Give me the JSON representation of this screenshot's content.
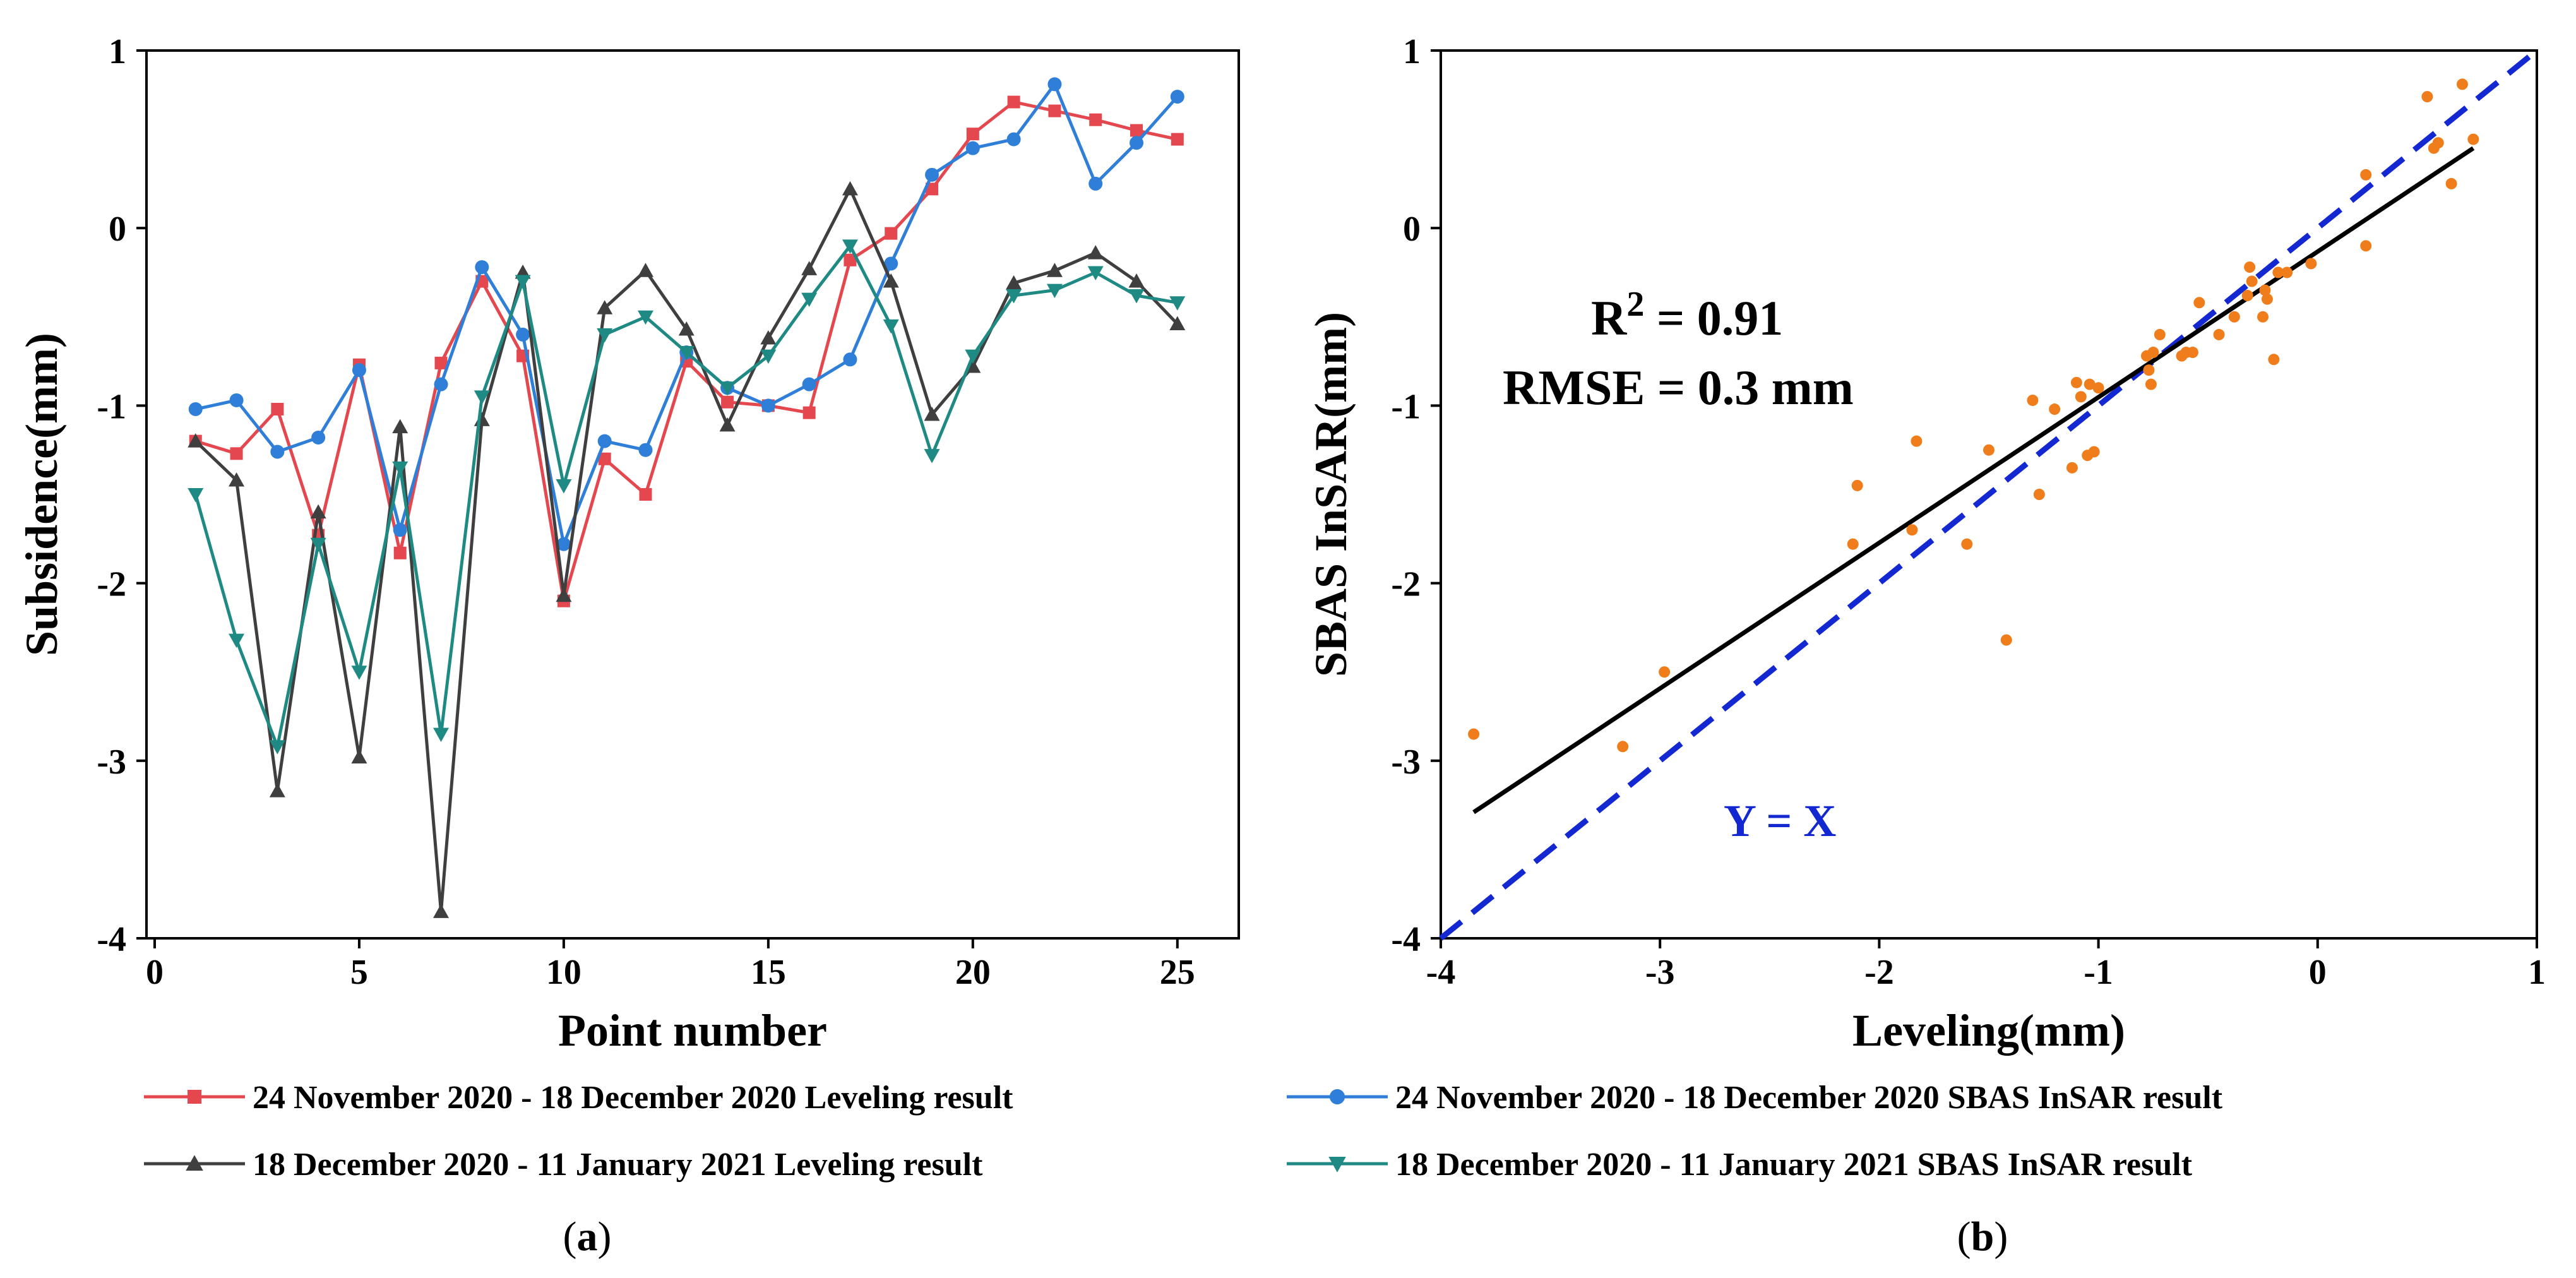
{
  "chart_data": [
    {
      "id": "a",
      "type": "line",
      "panel_label": "(a)",
      "panel_letter": "a",
      "xlabel": "Point number",
      "ylabel": "Subsidence(mm)",
      "xlim": [
        -0.2,
        26.5
      ],
      "ylim": [
        -4,
        1
      ],
      "xticks": [
        0,
        5,
        10,
        15,
        20,
        25
      ],
      "yticks": [
        -4,
        -3,
        -2,
        -1,
        0,
        1
      ],
      "x": [
        1,
        2,
        3,
        4,
        5,
        6,
        7,
        8,
        9,
        10,
        11,
        12,
        13,
        14,
        15,
        16,
        17,
        18,
        19,
        20,
        21,
        22,
        23,
        24,
        25
      ],
      "series": [
        {
          "name": "24 November 2020 - 18 December 2020 Leveling result",
          "color": "#e5474f",
          "marker": "square",
          "values": [
            -1.2,
            -1.27,
            -1.02,
            -1.73,
            -0.77,
            -1.83,
            -0.76,
            -0.3,
            -0.72,
            -2.1,
            -1.3,
            -1.5,
            -0.75,
            -0.98,
            -1.0,
            -1.04,
            -0.18,
            -0.03,
            0.22,
            0.53,
            0.71,
            0.66,
            0.61,
            0.55,
            0.5
          ]
        },
        {
          "name": "24 November 2020 - 18 December 2020 SBAS InSAR result",
          "color": "#2f7fd8",
          "marker": "circle",
          "values": [
            -1.02,
            -0.97,
            -1.26,
            -1.18,
            -0.8,
            -1.7,
            -0.88,
            -0.22,
            -0.6,
            -1.78,
            -1.2,
            -1.25,
            -0.7,
            -0.9,
            -1.0,
            -0.88,
            -0.74,
            -0.2,
            0.3,
            0.45,
            0.5,
            0.81,
            0.25,
            0.48,
            0.74
          ]
        },
        {
          "name": "18 December 2020 - 11 January 2021 Leveling result",
          "color": "#3f3f3f",
          "marker": "triangle-up",
          "values": [
            -1.2,
            -1.42,
            -3.17,
            -1.6,
            -2.98,
            -1.12,
            -3.85,
            -1.08,
            -0.25,
            -2.07,
            -0.45,
            -0.24,
            -0.57,
            -1.11,
            -0.62,
            -0.23,
            0.22,
            -0.3,
            -1.05,
            -0.78,
            -0.31,
            -0.24,
            -0.14,
            -0.3,
            -0.54
          ]
        },
        {
          "name": "18 December 2020 - 11 January 2021 SBAS InSAR result",
          "color": "#1f8a84",
          "marker": "triangle-down",
          "values": [
            -1.5,
            -2.32,
            -2.92,
            -1.78,
            -2.5,
            -1.35,
            -2.85,
            -0.95,
            -0.3,
            -1.45,
            -0.6,
            -0.5,
            -0.7,
            -0.9,
            -0.72,
            -0.4,
            -0.1,
            -0.55,
            -1.28,
            -0.72,
            -0.38,
            -0.35,
            -0.25,
            -0.38,
            -0.42
          ]
        }
      ]
    },
    {
      "id": "b",
      "type": "scatter",
      "panel_label": "(b)",
      "panel_letter": "b",
      "xlabel": "Leveling(mm)",
      "ylabel": "SBAS InSAR(mm)",
      "xlim": [
        -4,
        1
      ],
      "ylim": [
        -4,
        1
      ],
      "xticks": [
        -4,
        -3,
        -2,
        -1,
        0,
        1
      ],
      "yticks": [
        -4,
        -3,
        -2,
        -1,
        0,
        1
      ],
      "point_color": "#f07d1c",
      "fit_line": {
        "x": [
          -3.85,
          0.71
        ],
        "y": [
          -3.29,
          0.45
        ],
        "color": "#000000"
      },
      "identity_line": {
        "x": [
          -4,
          1
        ],
        "y": [
          -4,
          1
        ],
        "color": "#1428d2",
        "label": "Y = X"
      },
      "annotations": {
        "r2_prefix": "R",
        "r2_exp": "2",
        "r2_value": " = 0.91",
        "rmse": "RMSE = 0.3 mm"
      },
      "points": [
        [
          -3.85,
          -2.85
        ],
        [
          -3.17,
          -2.92
        ],
        [
          -2.98,
          -2.5
        ],
        [
          -2.12,
          -1.78
        ],
        [
          -2.1,
          -1.45
        ],
        [
          -1.85,
          -1.7
        ],
        [
          -1.83,
          -1.2
        ],
        [
          -1.6,
          -1.78
        ],
        [
          -1.5,
          -1.25
        ],
        [
          -1.42,
          -2.32
        ],
        [
          -1.3,
          -0.97
        ],
        [
          -1.27,
          -1.5
        ],
        [
          -1.2,
          -1.02
        ],
        [
          -1.12,
          -1.35
        ],
        [
          -1.1,
          -0.87
        ],
        [
          -1.08,
          -0.95
        ],
        [
          -1.04,
          -0.88
        ],
        [
          -1.05,
          -1.28
        ],
        [
          -1.02,
          -1.26
        ],
        [
          -1.0,
          -0.9
        ],
        [
          -0.78,
          -0.72
        ],
        [
          -0.77,
          -0.8
        ],
        [
          -0.76,
          -0.88
        ],
        [
          -0.75,
          -0.7
        ],
        [
          -0.72,
          -0.6
        ],
        [
          -0.62,
          -0.72
        ],
        [
          -0.6,
          -0.7
        ],
        [
          -0.57,
          -0.7
        ],
        [
          -0.54,
          -0.42
        ],
        [
          -0.45,
          -0.6
        ],
        [
          -0.38,
          -0.5
        ],
        [
          -0.32,
          -0.38
        ],
        [
          -0.31,
          -0.22
        ],
        [
          -0.3,
          -0.3
        ],
        [
          -0.25,
          -0.5
        ],
        [
          -0.24,
          -0.35
        ],
        [
          -0.23,
          -0.4
        ],
        [
          -0.2,
          -0.74
        ],
        [
          -0.18,
          -0.25
        ],
        [
          -0.14,
          -0.25
        ],
        [
          -0.03,
          -0.2
        ],
        [
          0.22,
          0.3
        ],
        [
          0.22,
          -0.1
        ],
        [
          0.5,
          0.74
        ],
        [
          0.53,
          0.45
        ],
        [
          0.55,
          0.48
        ],
        [
          0.61,
          0.25
        ],
        [
          0.66,
          0.81
        ],
        [
          0.71,
          0.5
        ]
      ]
    }
  ]
}
